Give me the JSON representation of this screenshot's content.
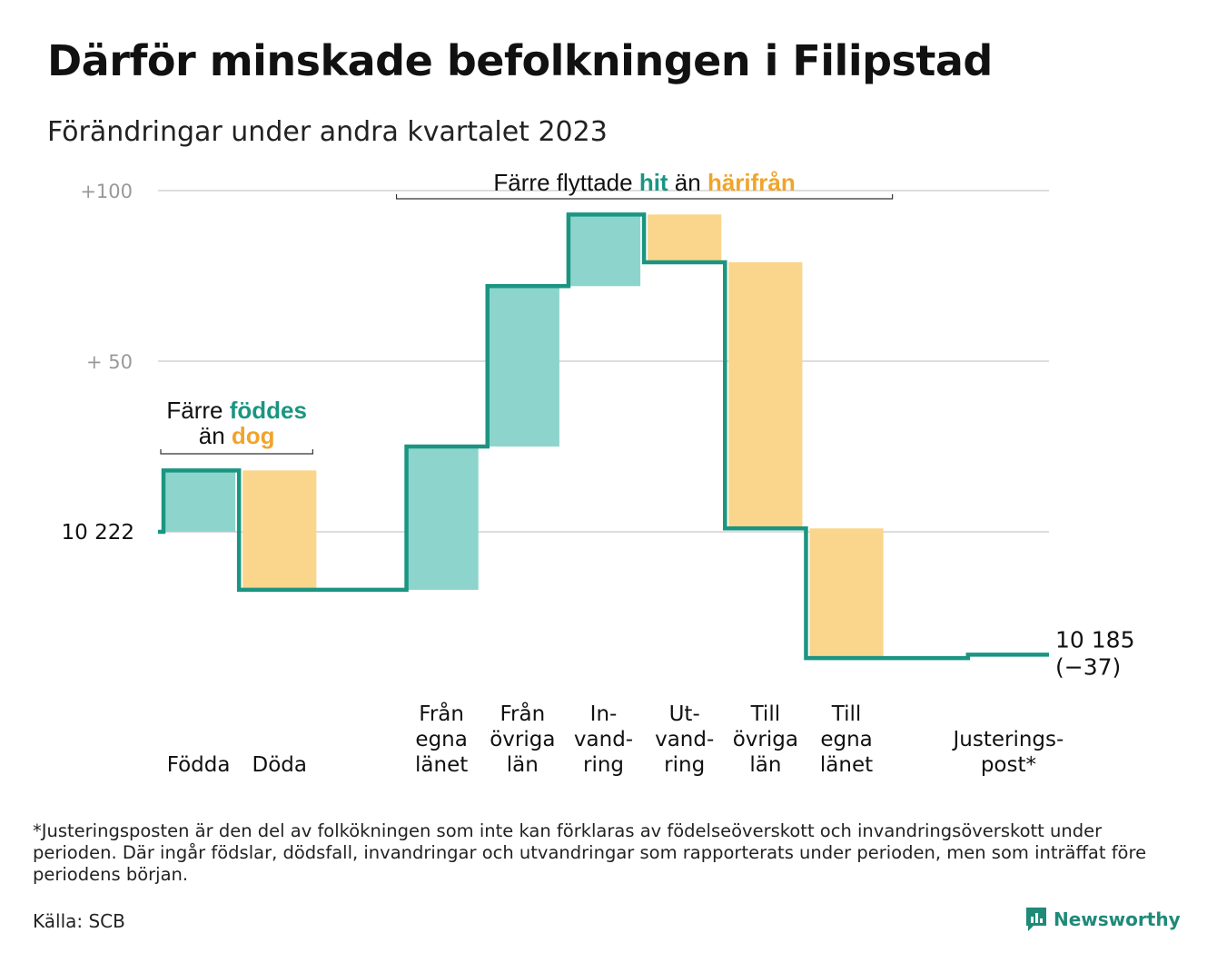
{
  "title": "Därför minskade befolkningen i Filipstad",
  "subtitle": "Förändringar under andra kvartalet 2023",
  "colors": {
    "increase": "#8dd5cc",
    "decrease": "#fad58c",
    "line": "#1b9582",
    "grid": "#dddddd",
    "teal_text": "#1b9582",
    "orange_text": "#f0a42a"
  },
  "chart_data": {
    "type": "waterfall",
    "start_value": 10222,
    "ylim": [
      -40,
      100
    ],
    "yticks": [
      {
        "value": 100,
        "label": "+100"
      },
      {
        "value": 50,
        "label": "+  50"
      },
      {
        "value": 0,
        "label": "10   222"
      }
    ],
    "steps": [
      {
        "label": [
          "Födda"
        ],
        "change": 18,
        "kind": "increase"
      },
      {
        "label": [
          "Döda"
        ],
        "change": -35,
        "kind": "decrease"
      },
      {
        "label": [],
        "change": 0,
        "kind": "none"
      },
      {
        "label": [
          "Från",
          "egna",
          "länet"
        ],
        "change": 42,
        "kind": "increase"
      },
      {
        "label": [
          "Från",
          "övriga",
          "län"
        ],
        "change": 47,
        "kind": "increase"
      },
      {
        "label": [
          "In-",
          "vand-",
          "ring"
        ],
        "change": 21,
        "kind": "increase"
      },
      {
        "label": [
          "Ut-",
          "vand-",
          "ring"
        ],
        "change": -14,
        "kind": "decrease"
      },
      {
        "label": [
          "Till",
          "övriga",
          "län"
        ],
        "change": -78,
        "kind": "decrease"
      },
      {
        "label": [
          "Till",
          "egna",
          "länet"
        ],
        "change": -38,
        "kind": "decrease"
      },
      {
        "label": [],
        "change": 0,
        "kind": "none"
      },
      {
        "label": [
          "Justerings-",
          "post*"
        ],
        "change": 1,
        "kind": "none"
      }
    ],
    "end_label": [
      "10 185",
      "(−37)"
    ],
    "annotations": [
      {
        "id": "births",
        "parts": [
          {
            "text": "Färre ",
            "style": "plain"
          },
          {
            "text": "föddes",
            "style": "teal"
          }
        ],
        "parts2": [
          {
            "text": "än ",
            "style": "plain"
          },
          {
            "text": "dog",
            "style": "orange"
          }
        ]
      },
      {
        "id": "moves",
        "parts": [
          {
            "text": "Färre flyttade ",
            "style": "plain"
          },
          {
            "text": "hit",
            "style": "teal"
          },
          {
            "text": " än ",
            "style": "plain"
          },
          {
            "text": "härifrån",
            "style": "orange"
          }
        ]
      }
    ]
  },
  "footnote": "*Justeringsposten är den del av folkökningen som inte kan förklaras av födelseöverskott och invandringsöverskott under perioden. Där ingår födslar, dödsfall, invandringar och utvandringar som rapporterats under perioden, men som inträffat före periodens början.",
  "source": "Källa: SCB",
  "brand": {
    "name": "Newsworthy",
    "icon": "newsworthy-chart-icon"
  }
}
